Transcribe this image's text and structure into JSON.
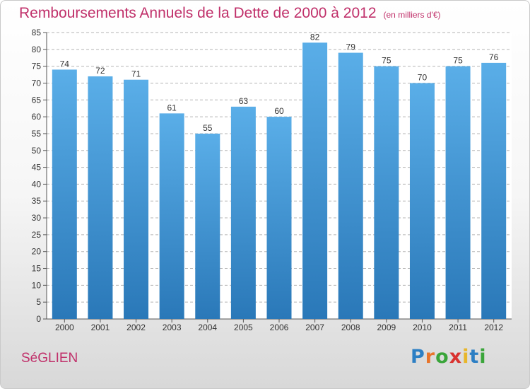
{
  "chart_data": {
    "type": "bar",
    "title": "Remboursements Annuels de la Dette de 2000 à 2012",
    "subtitle": "(en milliers d'€)",
    "xlabel": "",
    "ylabel": "",
    "categories": [
      "2000",
      "2001",
      "2002",
      "2003",
      "2004",
      "2005",
      "2006",
      "2007",
      "2008",
      "2009",
      "2010",
      "2011",
      "2012"
    ],
    "values": [
      74,
      72,
      71,
      61,
      55,
      63,
      60,
      82,
      79,
      75,
      70,
      75,
      76
    ],
    "ylim": [
      0,
      85
    ],
    "yticks": [
      0,
      5,
      10,
      15,
      20,
      25,
      30,
      35,
      40,
      45,
      50,
      55,
      60,
      65,
      70,
      75,
      80,
      85
    ],
    "grid": true,
    "bar_color_top": "#5aaee8",
    "bar_color_bottom": "#2a78b8"
  },
  "commune": "SéGLIEN",
  "logo": {
    "letters": [
      "P",
      "r",
      "o",
      "x",
      "i",
      "t",
      "i"
    ],
    "colors": [
      "#2c7fc4",
      "#e8742a",
      "#3aa53a",
      "#d9322f",
      "#e8b62a",
      "#2c7fc4",
      "#3aa53a"
    ]
  }
}
